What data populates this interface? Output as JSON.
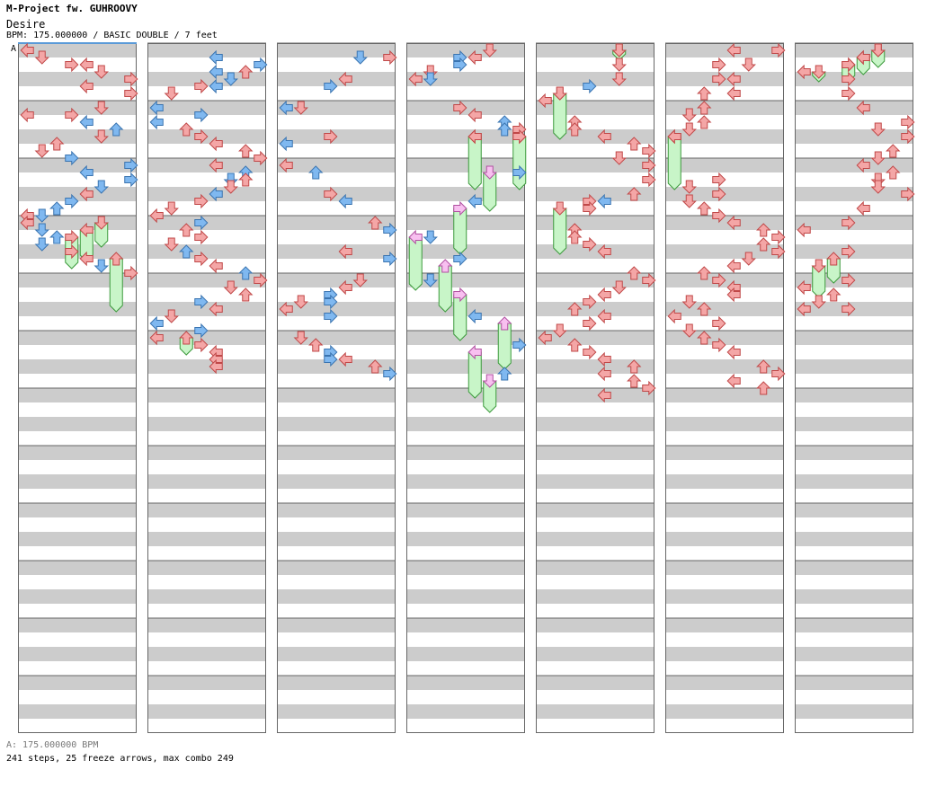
{
  "header": {
    "artist": "M-Project fw. GUHROOVY",
    "title": "Desire",
    "info": "BPM: 175.000000 / BASIC DOUBLE / 7 feet",
    "bpm_marker": "A"
  },
  "footer": {
    "bpm_line": "A: 175.000000 BPM",
    "stats": "241 steps, 25 freeze arrows, max combo 249"
  },
  "colors": {
    "red": "#f4a6a6",
    "red_stroke": "#c04848",
    "blue": "#7fb8f0",
    "blue_stroke": "#3a74b0",
    "green": "#c8f5c8",
    "green_stroke": "#3c9a3c",
    "pink": "#f8c0f0",
    "pink_stroke": "#b050a0",
    "band": "#cccccc"
  },
  "chart_data": {
    "type": "step-chart",
    "columns": 7,
    "measures_per_column": 12,
    "lanes": 8,
    "lane_directions": [
      "left",
      "down",
      "up",
      "right",
      "left",
      "down",
      "up",
      "right"
    ],
    "steps": [
      [
        0,
        0,
        0,
        "red"
      ],
      [
        0,
        1,
        1,
        "red"
      ],
      [
        0,
        2,
        3,
        "red"
      ],
      [
        0,
        2,
        4,
        "red"
      ],
      [
        0,
        3,
        5,
        "red"
      ],
      [
        0,
        4,
        7,
        "red"
      ],
      [
        0,
        5,
        4,
        "red"
      ],
      [
        0,
        6,
        7,
        "red"
      ],
      [
        0,
        8,
        5,
        "red"
      ],
      [
        0,
        9,
        3,
        "red"
      ],
      [
        0,
        9,
        0,
        "red"
      ],
      [
        0,
        10,
        4,
        "blue"
      ],
      [
        0,
        11,
        6,
        "blue"
      ],
      [
        0,
        12,
        5,
        "red"
      ],
      [
        0,
        13,
        2,
        "red"
      ],
      [
        0,
        14,
        1,
        "red"
      ],
      [
        0,
        15,
        3,
        "blue"
      ],
      [
        0,
        16,
        7,
        "blue"
      ],
      [
        0,
        17,
        4,
        "blue"
      ],
      [
        0,
        18,
        7,
        "blue"
      ],
      [
        0,
        19,
        5,
        "blue"
      ],
      [
        0,
        20,
        4,
        "red"
      ],
      [
        0,
        21,
        3,
        "blue"
      ],
      [
        0,
        22,
        2,
        "blue"
      ],
      [
        0,
        23,
        1,
        "blue"
      ],
      [
        0,
        23,
        0,
        "red"
      ],
      [
        0,
        24,
        0,
        "red"
      ],
      [
        0,
        25,
        1,
        "blue"
      ],
      [
        0,
        26,
        2,
        "blue"
      ],
      [
        0,
        27,
        1,
        "blue"
      ],
      [
        0,
        28,
        3,
        "red"
      ],
      [
        0,
        29,
        4,
        "red"
      ],
      [
        0,
        30,
        5,
        "blue"
      ],
      [
        0,
        31,
        7,
        "red"
      ],
      [
        1,
        1,
        4,
        "blue"
      ],
      [
        1,
        2,
        7,
        "blue"
      ],
      [
        1,
        3,
        4,
        "blue"
      ],
      [
        1,
        3,
        6,
        "red"
      ],
      [
        1,
        4,
        5,
        "blue"
      ],
      [
        1,
        5,
        4,
        "blue"
      ],
      [
        1,
        5,
        3,
        "red"
      ],
      [
        1,
        6,
        1,
        "red"
      ],
      [
        1,
        8,
        0,
        "blue"
      ],
      [
        1,
        9,
        3,
        "blue"
      ],
      [
        1,
        10,
        0,
        "blue"
      ],
      [
        1,
        11,
        2,
        "red"
      ],
      [
        1,
        12,
        3,
        "red"
      ],
      [
        1,
        13,
        4,
        "red"
      ],
      [
        1,
        14,
        6,
        "red"
      ],
      [
        1,
        15,
        7,
        "red"
      ],
      [
        1,
        16,
        4,
        "red"
      ],
      [
        1,
        17,
        6,
        "blue"
      ],
      [
        1,
        18,
        5,
        "blue"
      ],
      [
        1,
        18,
        6,
        "red"
      ],
      [
        1,
        19,
        5,
        "red"
      ],
      [
        1,
        20,
        4,
        "blue"
      ],
      [
        1,
        21,
        3,
        "red"
      ],
      [
        1,
        22,
        1,
        "red"
      ],
      [
        1,
        23,
        0,
        "red"
      ],
      [
        1,
        24,
        3,
        "blue"
      ],
      [
        1,
        25,
        2,
        "red"
      ],
      [
        1,
        26,
        3,
        "red"
      ],
      [
        1,
        27,
        1,
        "red"
      ],
      [
        1,
        28,
        2,
        "blue"
      ],
      [
        1,
        29,
        3,
        "red"
      ],
      [
        1,
        30,
        4,
        "red"
      ],
      [
        1,
        31,
        6,
        "blue"
      ],
      [
        1,
        32,
        7,
        "red"
      ],
      [
        1,
        33,
        5,
        "red"
      ],
      [
        1,
        34,
        6,
        "red"
      ],
      [
        1,
        35,
        3,
        "blue"
      ],
      [
        1,
        36,
        4,
        "red"
      ],
      [
        1,
        37,
        1,
        "red"
      ],
      [
        1,
        38,
        0,
        "blue"
      ],
      [
        1,
        39,
        3,
        "blue"
      ],
      [
        1,
        40,
        0,
        "red"
      ],
      [
        1,
        41,
        3,
        "red"
      ],
      [
        1,
        42,
        4,
        "red"
      ],
      [
        1,
        43,
        4,
        "red"
      ],
      [
        1,
        44,
        4,
        "red"
      ],
      [
        2,
        1,
        7,
        "red"
      ],
      [
        2,
        1,
        5,
        "blue"
      ],
      [
        2,
        4,
        4,
        "red"
      ],
      [
        2,
        5,
        3,
        "blue"
      ],
      [
        2,
        8,
        1,
        "red"
      ],
      [
        2,
        8,
        0,
        "blue"
      ],
      [
        2,
        12,
        3,
        "red"
      ],
      [
        2,
        13,
        0,
        "blue"
      ],
      [
        2,
        16,
        0,
        "red"
      ],
      [
        2,
        17,
        2,
        "blue"
      ],
      [
        2,
        20,
        3,
        "red"
      ],
      [
        2,
        21,
        4,
        "blue"
      ],
      [
        2,
        24,
        6,
        "red"
      ],
      [
        2,
        25,
        7,
        "blue"
      ],
      [
        2,
        28,
        4,
        "red"
      ],
      [
        2,
        29,
        7,
        "blue"
      ],
      [
        2,
        32,
        5,
        "red"
      ],
      [
        2,
        33,
        4,
        "red"
      ],
      [
        2,
        34,
        3,
        "blue"
      ],
      [
        2,
        35,
        3,
        "blue"
      ],
      [
        2,
        35,
        1,
        "red"
      ],
      [
        2,
        36,
        0,
        "red"
      ],
      [
        2,
        37,
        3,
        "blue"
      ],
      [
        2,
        40,
        1,
        "red"
      ],
      [
        2,
        41,
        2,
        "red"
      ],
      [
        2,
        42,
        3,
        "blue"
      ],
      [
        2,
        43,
        3,
        "blue"
      ],
      [
        2,
        43,
        4,
        "red"
      ],
      [
        2,
        44,
        6,
        "red"
      ],
      [
        2,
        45,
        7,
        "blue"
      ],
      [
        3,
        0,
        5,
        "red"
      ],
      [
        3,
        1,
        4,
        "red"
      ],
      [
        3,
        1,
        3,
        "blue"
      ],
      [
        3,
        2,
        3,
        "blue"
      ],
      [
        3,
        3,
        1,
        "red"
      ],
      [
        3,
        4,
        0,
        "red"
      ],
      [
        3,
        4,
        1,
        "blue"
      ],
      [
        3,
        8,
        3,
        "red"
      ],
      [
        3,
        9,
        4,
        "red"
      ],
      [
        3,
        10,
        6,
        "blue"
      ],
      [
        3,
        11,
        6,
        "blue"
      ],
      [
        3,
        11,
        7,
        "red"
      ],
      [
        3,
        12,
        4,
        "red"
      ],
      [
        3,
        12,
        7,
        "red"
      ],
      [
        3,
        17,
        7,
        "blue"
      ],
      [
        3,
        21,
        4,
        "blue"
      ],
      [
        3,
        26,
        1,
        "blue"
      ],
      [
        3,
        29,
        3,
        "blue"
      ],
      [
        3,
        32,
        1,
        "blue"
      ],
      [
        3,
        37,
        4,
        "blue"
      ],
      [
        3,
        41,
        7,
        "blue"
      ],
      [
        3,
        45,
        6,
        "blue"
      ],
      [
        4,
        0,
        5,
        "red"
      ],
      [
        4,
        2,
        5,
        "red"
      ],
      [
        4,
        4,
        5,
        "red"
      ],
      [
        4,
        5,
        3,
        "blue"
      ],
      [
        4,
        6,
        1,
        "red"
      ],
      [
        4,
        7,
        0,
        "red"
      ],
      [
        4,
        10,
        2,
        "red"
      ],
      [
        4,
        11,
        2,
        "red"
      ],
      [
        4,
        12,
        4,
        "red"
      ],
      [
        4,
        13,
        6,
        "red"
      ],
      [
        4,
        14,
        7,
        "red"
      ],
      [
        4,
        15,
        5,
        "red"
      ],
      [
        4,
        16,
        7,
        "red"
      ],
      [
        4,
        18,
        7,
        "red"
      ],
      [
        4,
        20,
        6,
        "red"
      ],
      [
        4,
        21,
        4,
        "blue"
      ],
      [
        4,
        21,
        3,
        "red"
      ],
      [
        4,
        22,
        3,
        "red"
      ],
      [
        4,
        25,
        2,
        "red"
      ],
      [
        4,
        26,
        2,
        "red"
      ],
      [
        4,
        27,
        3,
        "red"
      ],
      [
        4,
        28,
        4,
        "red"
      ],
      [
        4,
        31,
        6,
        "red"
      ],
      [
        4,
        32,
        7,
        "red"
      ],
      [
        4,
        33,
        5,
        "red"
      ],
      [
        4,
        34,
        4,
        "red"
      ],
      [
        4,
        35,
        3,
        "red"
      ],
      [
        4,
        36,
        2,
        "red"
      ],
      [
        4,
        37,
        4,
        "red"
      ],
      [
        4,
        38,
        3,
        "red"
      ],
      [
        4,
        39,
        1,
        "red"
      ],
      [
        4,
        40,
        0,
        "red"
      ],
      [
        4,
        41,
        2,
        "red"
      ],
      [
        4,
        42,
        3,
        "red"
      ],
      [
        4,
        43,
        4,
        "red"
      ],
      [
        4,
        44,
        6,
        "red"
      ],
      [
        4,
        45,
        4,
        "red"
      ],
      [
        4,
        46,
        6,
        "red"
      ],
      [
        4,
        47,
        7,
        "red"
      ],
      [
        4,
        48,
        4,
        "red"
      ],
      [
        5,
        0,
        4,
        "red"
      ],
      [
        5,
        0,
        7,
        "red"
      ],
      [
        5,
        2,
        3,
        "red"
      ],
      [
        5,
        2,
        5,
        "red"
      ],
      [
        5,
        4,
        3,
        "red"
      ],
      [
        5,
        4,
        4,
        "red"
      ],
      [
        5,
        6,
        2,
        "red"
      ],
      [
        5,
        6,
        4,
        "red"
      ],
      [
        5,
        8,
        2,
        "red"
      ],
      [
        5,
        9,
        1,
        "red"
      ],
      [
        5,
        10,
        2,
        "red"
      ],
      [
        5,
        11,
        1,
        "red"
      ],
      [
        5,
        12,
        0,
        "red"
      ],
      [
        5,
        18,
        3,
        "red"
      ],
      [
        5,
        19,
        1,
        "red"
      ],
      [
        5,
        20,
        3,
        "red"
      ],
      [
        5,
        21,
        1,
        "red"
      ],
      [
        5,
        22,
        2,
        "red"
      ],
      [
        5,
        23,
        3,
        "red"
      ],
      [
        5,
        24,
        4,
        "red"
      ],
      [
        5,
        25,
        6,
        "red"
      ],
      [
        5,
        26,
        7,
        "red"
      ],
      [
        5,
        27,
        6,
        "red"
      ],
      [
        5,
        28,
        7,
        "red"
      ],
      [
        5,
        29,
        5,
        "red"
      ],
      [
        5,
        30,
        4,
        "red"
      ],
      [
        5,
        31,
        2,
        "red"
      ],
      [
        5,
        32,
        3,
        "red"
      ],
      [
        5,
        33,
        4,
        "red"
      ],
      [
        5,
        34,
        4,
        "red"
      ],
      [
        5,
        35,
        1,
        "red"
      ],
      [
        5,
        36,
        2,
        "red"
      ],
      [
        5,
        37,
        0,
        "red"
      ],
      [
        5,
        38,
        3,
        "red"
      ],
      [
        5,
        39,
        1,
        "red"
      ],
      [
        5,
        40,
        2,
        "red"
      ],
      [
        5,
        41,
        3,
        "red"
      ],
      [
        5,
        42,
        4,
        "red"
      ],
      [
        5,
        44,
        6,
        "red"
      ],
      [
        5,
        45,
        7,
        "red"
      ],
      [
        5,
        46,
        4,
        "red"
      ],
      [
        5,
        47,
        6,
        "red"
      ],
      [
        6,
        0,
        5,
        "red"
      ],
      [
        6,
        1,
        4,
        "red"
      ],
      [
        6,
        2,
        3,
        "red"
      ],
      [
        6,
        3,
        0,
        "red"
      ],
      [
        6,
        4,
        3,
        "red"
      ],
      [
        6,
        6,
        3,
        "red"
      ],
      [
        6,
        8,
        4,
        "red"
      ],
      [
        6,
        10,
        7,
        "red"
      ],
      [
        6,
        11,
        5,
        "red"
      ],
      [
        6,
        12,
        7,
        "red"
      ],
      [
        6,
        14,
        6,
        "red"
      ],
      [
        6,
        15,
        5,
        "red"
      ],
      [
        6,
        16,
        4,
        "red"
      ],
      [
        6,
        17,
        6,
        "red"
      ],
      [
        6,
        18,
        5,
        "red"
      ],
      [
        6,
        19,
        5,
        "red"
      ],
      [
        6,
        20,
        7,
        "red"
      ],
      [
        6,
        22,
        4,
        "red"
      ],
      [
        6,
        24,
        3,
        "red"
      ],
      [
        6,
        25,
        0,
        "red"
      ],
      [
        6,
        28,
        3,
        "red"
      ],
      [
        6,
        32,
        3,
        "red"
      ],
      [
        6,
        33,
        0,
        "red"
      ],
      [
        6,
        34,
        2,
        "red"
      ],
      [
        6,
        35,
        1,
        "red"
      ],
      [
        6,
        36,
        0,
        "red"
      ],
      [
        6,
        36,
        3,
        "red"
      ]
    ],
    "freezes": [
      [
        0,
        24,
        5,
        27,
        "red"
      ],
      [
        0,
        25,
        4,
        29,
        "red"
      ],
      [
        0,
        26,
        3,
        30,
        "red"
      ],
      [
        0,
        29,
        6,
        36,
        "red"
      ],
      [
        1,
        40,
        2,
        42,
        "red"
      ],
      [
        3,
        12,
        4,
        19,
        "red"
      ],
      [
        3,
        12,
        7,
        19,
        "red"
      ],
      [
        3,
        17,
        5,
        22,
        "pink"
      ],
      [
        3,
        22,
        3,
        28,
        "pink"
      ],
      [
        3,
        26,
        0,
        33,
        "pink"
      ],
      [
        3,
        30,
        2,
        36,
        "pink"
      ],
      [
        3,
        34,
        3,
        40,
        "pink"
      ],
      [
        3,
        38,
        6,
        44,
        "pink"
      ],
      [
        3,
        42,
        4,
        48,
        "pink"
      ],
      [
        3,
        46,
        5,
        50,
        "pink"
      ],
      [
        4,
        0,
        5,
        1,
        "green"
      ],
      [
        4,
        6,
        1,
        12,
        "red"
      ],
      [
        4,
        22,
        1,
        28,
        "red"
      ],
      [
        5,
        12,
        0,
        19,
        "red"
      ],
      [
        6,
        0,
        5,
        2,
        "red"
      ],
      [
        6,
        1,
        4,
        3,
        "red"
      ],
      [
        6,
        2,
        3,
        4,
        "red"
      ],
      [
        6,
        3,
        1,
        4,
        "red"
      ],
      [
        6,
        29,
        2,
        32,
        "red"
      ],
      [
        6,
        30,
        1,
        34,
        "red"
      ]
    ]
  }
}
